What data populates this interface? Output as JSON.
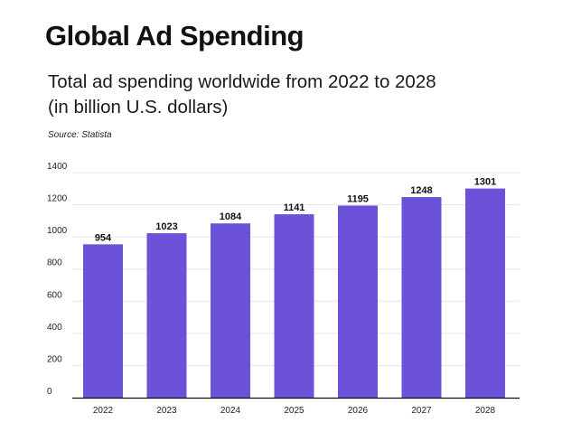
{
  "header": {
    "title": "Global Ad Spending",
    "subtitle_line1": "Total ad spending worldwide from 2022 to 2028",
    "subtitle_line2": "(in billion U.S. dollars)",
    "source": "Source: Statista"
  },
  "colors": {
    "bar": "#6b52d9",
    "grid": "#e6e6e6",
    "axis": "#111111"
  },
  "chart_data": {
    "type": "bar",
    "title": "Global Ad Spending",
    "subtitle": "Total ad spending worldwide from 2022 to 2028 (in billion U.S. dollars)",
    "categories": [
      "2022",
      "2023",
      "2024",
      "2025",
      "2026",
      "2027",
      "2028"
    ],
    "values": [
      954,
      1023,
      1084,
      1141,
      1195,
      1248,
      1301
    ],
    "ylim": [
      0,
      1400
    ],
    "yticks": [
      0,
      200,
      400,
      600,
      800,
      1000,
      1200,
      1400
    ],
    "xlabel": "",
    "ylabel": "",
    "grid": true,
    "data_labels": true
  }
}
